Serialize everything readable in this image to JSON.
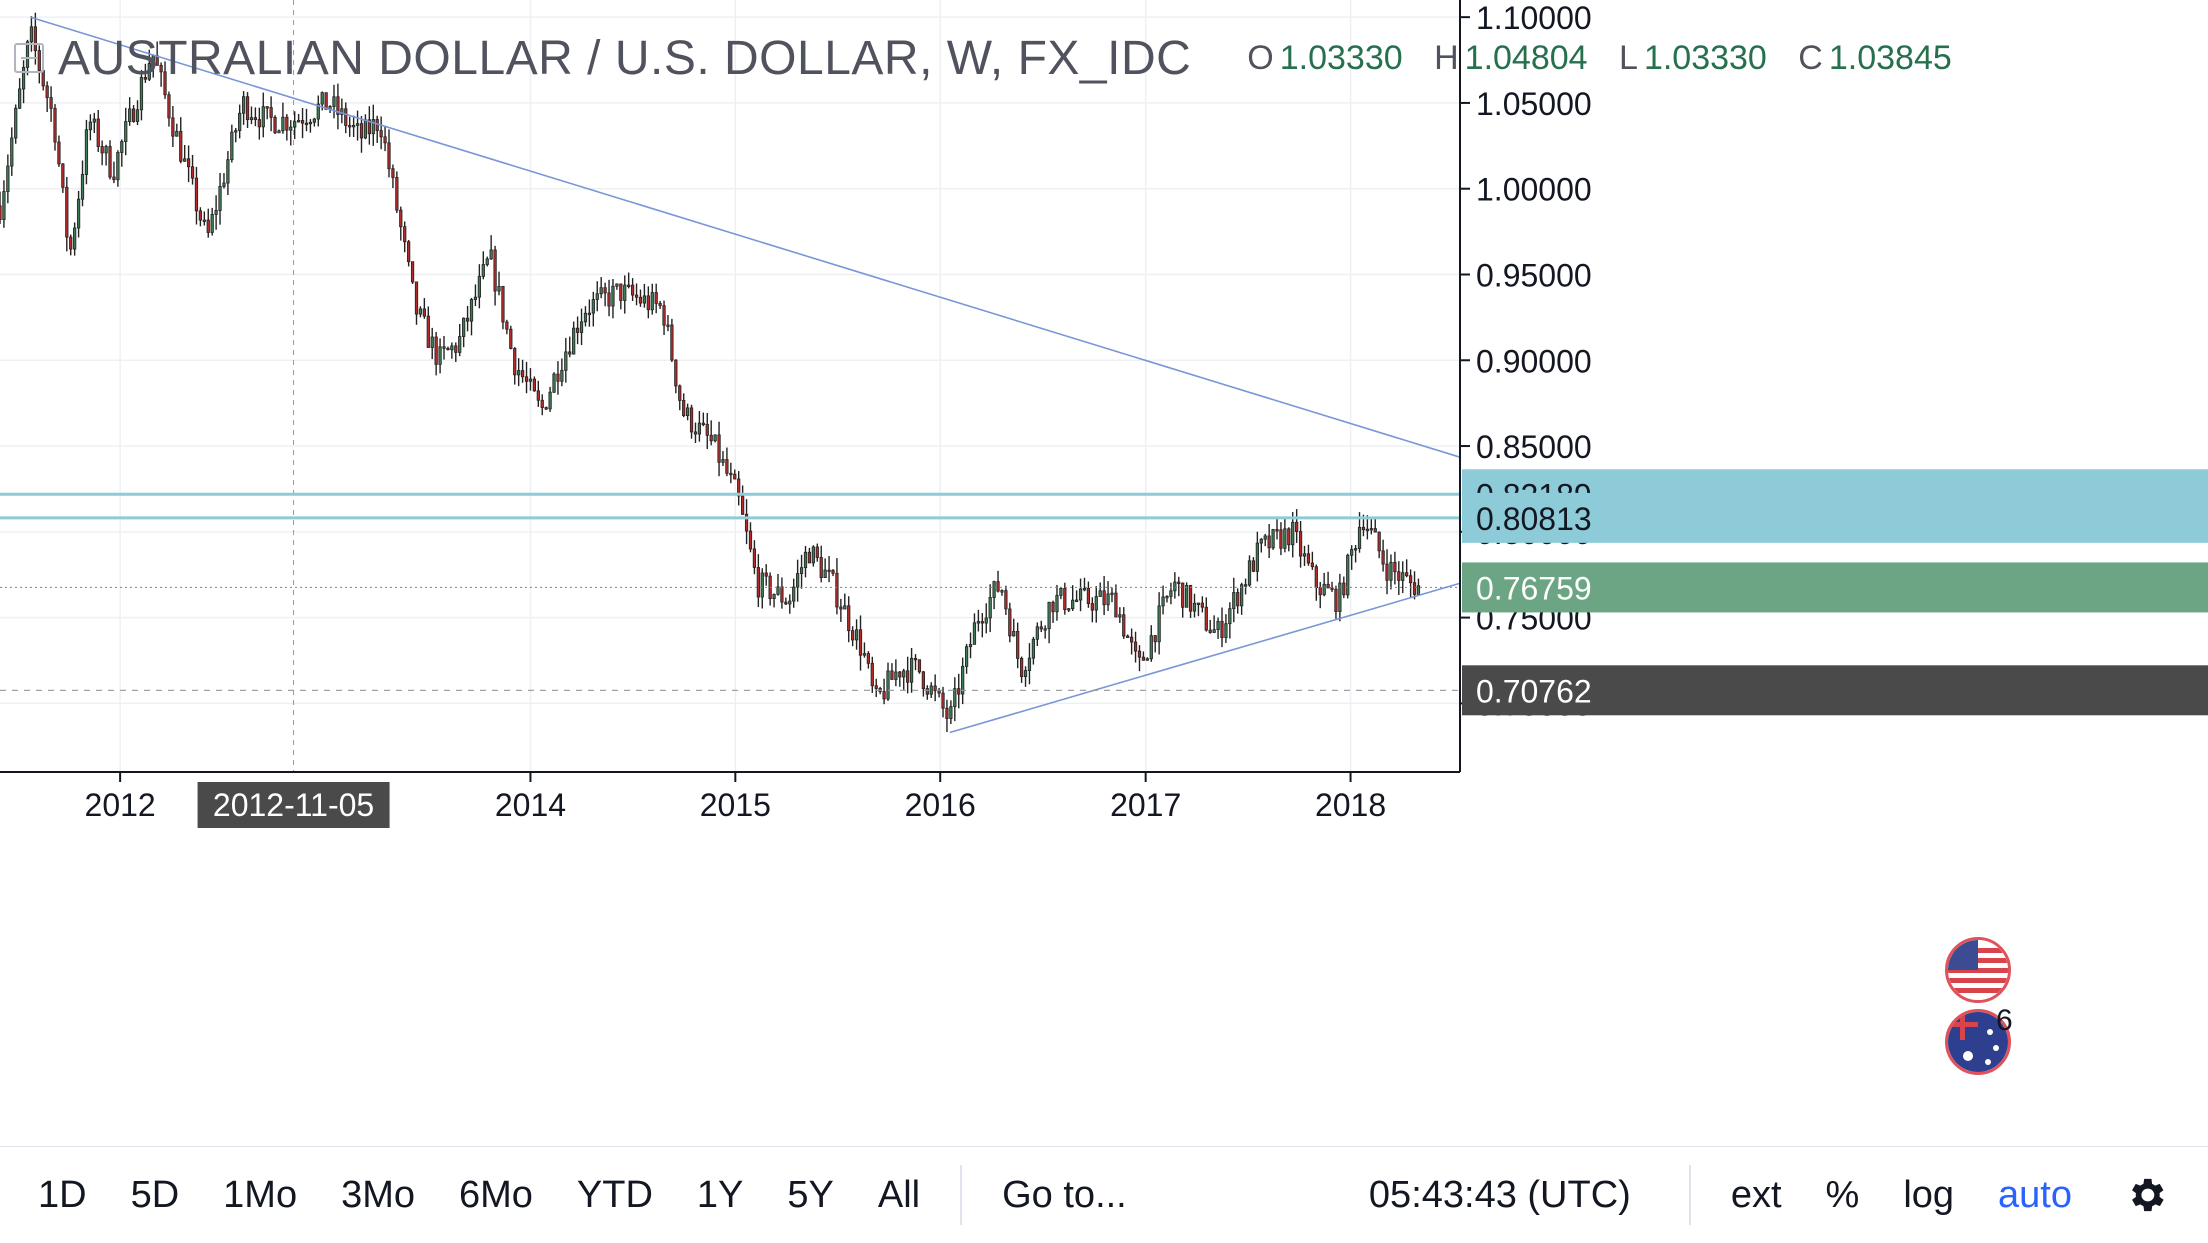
{
  "header": {
    "title": "AUSTRALIAN DOLLAR / U.S. DOLLAR, W, FX_IDC",
    "ohlc": [
      {
        "key": "O",
        "value": "1.03330"
      },
      {
        "key": "H",
        "value": "1.04804"
      },
      {
        "key": "L",
        "value": "1.03330"
      },
      {
        "key": "C",
        "value": "1.03845"
      }
    ]
  },
  "colors": {
    "up": "#3d7a55",
    "down": "#b22a2a",
    "wick": "#222222",
    "trend": "#7a96d6",
    "level": "#8ecbd9",
    "level_badge": "#8ecbd9",
    "price_badge": "#6ba583",
    "hline_badge": "#4a4a4a"
  },
  "chart_data": {
    "type": "candlestick",
    "timeframe": "W",
    "symbol": "FX_IDC",
    "y_axis": {
      "range": [
        0.66,
        1.11
      ],
      "ticks": [
        "1.10000",
        "1.05000",
        "1.00000",
        "0.95000",
        "0.90000",
        "0.85000",
        "0.80000",
        "0.75000",
        "0.70000"
      ]
    },
    "x_axis": {
      "range": [
        "2011-06-01",
        "2018-07-15"
      ],
      "ticks": [
        {
          "label": "2012",
          "date": "2012-01-01"
        },
        {
          "label": "2014",
          "date": "2014-01-01"
        },
        {
          "label": "2015",
          "date": "2015-01-01"
        },
        {
          "label": "2016",
          "date": "2016-01-01"
        },
        {
          "label": "2017",
          "date": "2017-01-01"
        },
        {
          "label": "2018",
          "date": "2018-01-01"
        }
      ]
    },
    "crosshair": {
      "date": "2012-11-05",
      "label": "2012-11-05"
    },
    "anchors": [
      [
        "2011-06-01",
        0.99
      ],
      [
        "2011-07-25",
        1.09
      ],
      [
        "2011-09-05",
        1.04
      ],
      [
        "2011-10-03",
        0.96
      ],
      [
        "2011-11-07",
        1.04
      ],
      [
        "2011-12-19",
        1.01
      ],
      [
        "2012-02-27",
        1.08
      ],
      [
        "2012-04-02",
        1.04
      ],
      [
        "2012-06-04",
        0.97
      ],
      [
        "2012-08-06",
        1.05
      ],
      [
        "2012-09-17",
        1.04
      ],
      [
        "2012-11-05",
        1.04
      ],
      [
        "2013-01-07",
        1.05
      ],
      [
        "2013-03-04",
        1.03
      ],
      [
        "2013-04-08",
        1.04
      ],
      [
        "2013-05-13",
        0.98
      ],
      [
        "2013-06-10",
        0.93
      ],
      [
        "2013-07-22",
        0.9
      ],
      [
        "2013-08-26",
        0.91
      ],
      [
        "2013-10-21",
        0.96
      ],
      [
        "2013-12-02",
        0.9
      ],
      [
        "2014-01-20",
        0.87
      ],
      [
        "2014-02-24",
        0.9
      ],
      [
        "2014-04-07",
        0.93
      ],
      [
        "2014-06-09",
        0.94
      ],
      [
        "2014-08-25",
        0.93
      ],
      [
        "2014-09-29",
        0.87
      ],
      [
        "2014-11-24",
        0.85
      ],
      [
        "2015-01-05",
        0.82
      ],
      [
        "2015-02-09",
        0.77
      ],
      [
        "2015-04-06",
        0.76
      ],
      [
        "2015-05-11",
        0.79
      ],
      [
        "2015-06-22",
        0.77
      ],
      [
        "2015-08-17",
        0.73
      ],
      [
        "2015-09-07",
        0.7
      ],
      [
        "2015-10-19",
        0.72
      ],
      [
        "2015-11-23",
        0.72
      ],
      [
        "2016-01-18",
        0.69
      ],
      [
        "2016-03-07",
        0.75
      ],
      [
        "2016-04-18",
        0.77
      ],
      [
        "2016-05-23",
        0.72
      ],
      [
        "2016-07-18",
        0.76
      ],
      [
        "2016-09-05",
        0.76
      ],
      [
        "2016-11-07",
        0.76
      ],
      [
        "2016-12-19",
        0.72
      ],
      [
        "2017-02-20",
        0.77
      ],
      [
        "2017-05-08",
        0.74
      ],
      [
        "2017-07-24",
        0.79
      ],
      [
        "2017-09-18",
        0.8
      ],
      [
        "2017-10-30",
        0.77
      ],
      [
        "2017-12-11",
        0.76
      ],
      [
        "2018-01-22",
        0.81
      ],
      [
        "2018-03-05",
        0.78
      ],
      [
        "2018-04-16",
        0.77
      ],
      [
        "2018-05-07",
        0.7676
      ]
    ],
    "trendlines": [
      {
        "from": [
          "2011-07-25",
          1.1
        ],
        "to": [
          "2018-07-15",
          0.8435
        ]
      },
      {
        "from": [
          "2016-01-18",
          0.683
        ],
        "to": [
          "2018-07-15",
          0.77
        ]
      }
    ],
    "horizontal_levels": [
      {
        "value": 0.82189,
        "label": "0.82189"
      },
      {
        "value": 0.80813,
        "label": "0.80813"
      }
    ],
    "last_price": {
      "value": 0.76759,
      "label": "0.76759"
    },
    "hline": {
      "value": 0.70762,
      "label": "0.70762"
    }
  },
  "events": {
    "count": "6"
  },
  "toolbar": {
    "ranges": [
      "1D",
      "5D",
      "1Mo",
      "3Mo",
      "6Mo",
      "YTD",
      "1Y",
      "5Y",
      "All"
    ],
    "goto": "Go to...",
    "time": "05:43:43 (UTC)",
    "ext": "ext",
    "percent": "%",
    "log": "log",
    "auto": "auto"
  }
}
